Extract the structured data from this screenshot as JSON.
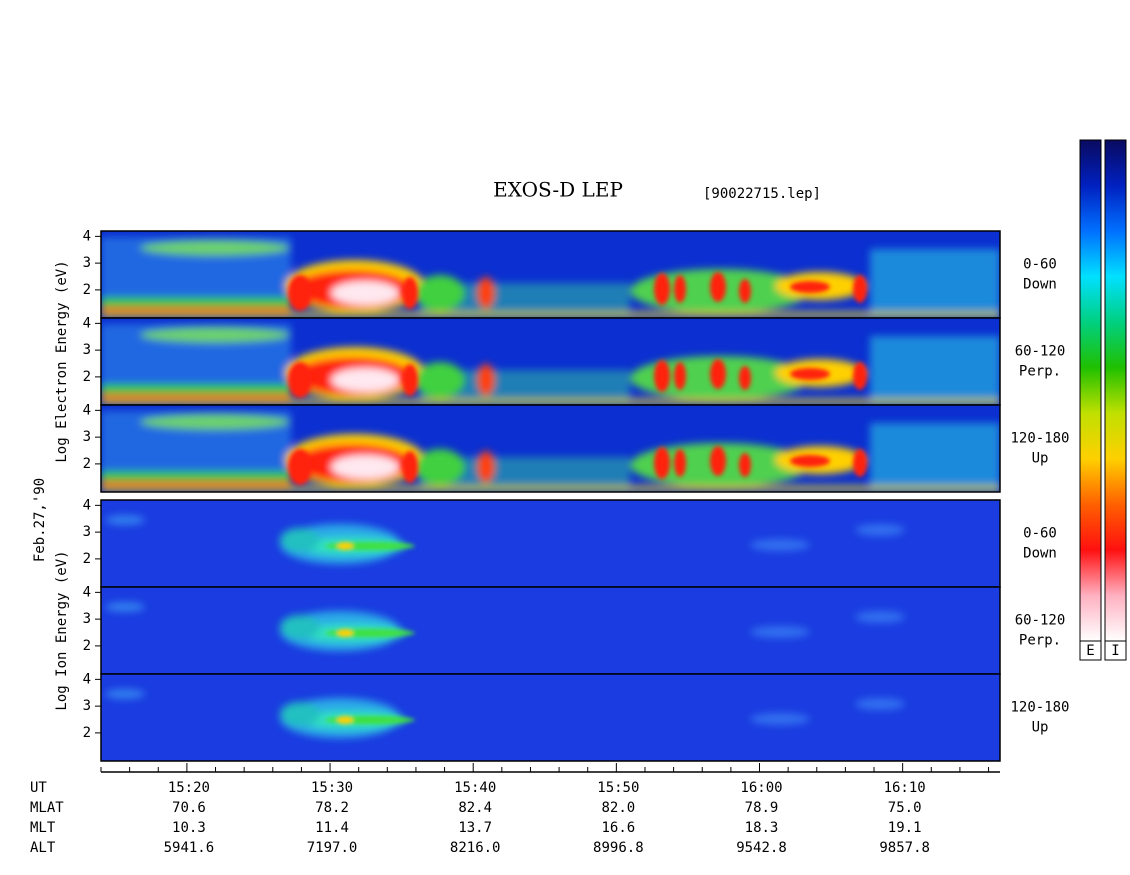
{
  "chart_data": {
    "type": "spectrogram",
    "title": "EXOS-D LEP",
    "subtitle": "[90022715.lep]",
    "date": "Feb.27,'90",
    "groups": [
      {
        "ylabel": "Log Electron Energy (eV)",
        "panels": [
          [
            "0-60",
            "Down"
          ],
          [
            "60-120",
            "Perp."
          ],
          [
            "120-180",
            "Up"
          ]
        ]
      },
      {
        "ylabel": "Log Ion Energy (eV)",
        "panels": [
          [
            "0-60",
            "Down"
          ],
          [
            "60-120",
            "Perp."
          ],
          [
            "120-180",
            "Up"
          ]
        ]
      }
    ],
    "ylim": [
      0.95,
      4.2
    ],
    "yticks": [
      2,
      3,
      4
    ],
    "xlim": [
      914,
      976.8
    ],
    "xticks": [
      {
        "value": 920,
        "label": "15:20"
      },
      {
        "value": 930,
        "label": "15:30"
      },
      {
        "value": 940,
        "label": "15:40"
      },
      {
        "value": 950,
        "label": "15:50"
      },
      {
        "value": 960,
        "label": "16:00"
      },
      {
        "value": 970,
        "label": "16:10"
      }
    ],
    "xminorticks": [
      914,
      916,
      918,
      922,
      924,
      926,
      928,
      932,
      934,
      936,
      938,
      942,
      944,
      946,
      948,
      952,
      954,
      956,
      958,
      962,
      964,
      966,
      968,
      972,
      974,
      976
    ],
    "orbit": {
      "row_labels": [
        "UT",
        "MLAT",
        "MLT",
        "ALT"
      ],
      "rows": [
        [
          "70.6",
          "78.2",
          "82.4",
          "82.0",
          "78.9",
          "75.0"
        ],
        [
          "10.3",
          "11.4",
          "13.7",
          "16.6",
          "18.3",
          "19.1"
        ],
        [
          "5941.6",
          "7197.0",
          "8216.0",
          "8996.8",
          "9542.8",
          "9857.8"
        ]
      ]
    },
    "colorbar": {
      "labels": [
        "E",
        "I"
      ],
      "colors": [
        "#0a0a60",
        "#0020c0",
        "#0070ff",
        "#00e0ff",
        "#00d080",
        "#20c000",
        "#c0e000",
        "#ffd000",
        "#ff6000",
        "#ff1010",
        "#ffb0c0",
        "#ffffff"
      ]
    }
  }
}
